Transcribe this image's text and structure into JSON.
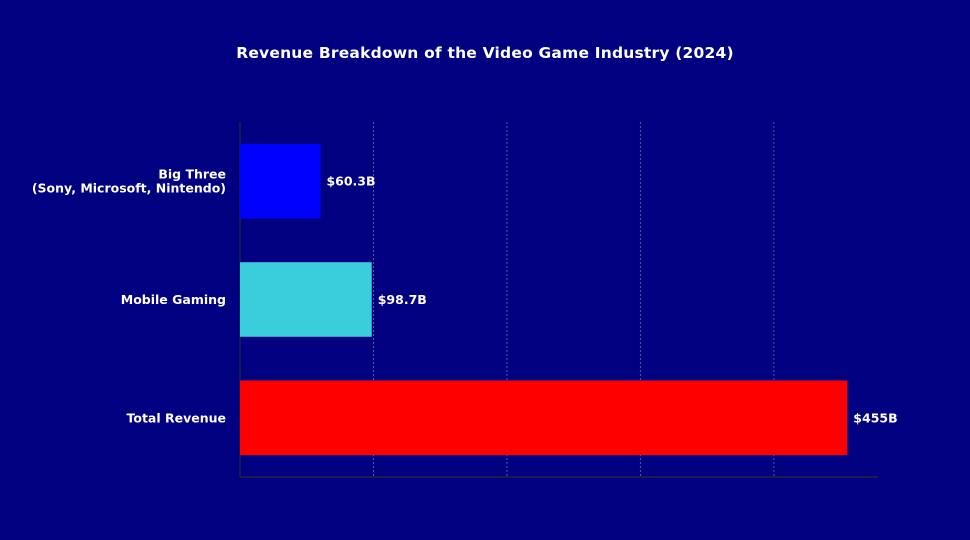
{
  "chart_data": {
    "type": "bar",
    "orientation": "horizontal",
    "title": "Revenue Breakdown of the Video Game Industry (2024)",
    "xlabel": "",
    "ylabel": "",
    "categories": [
      [
        "Big Three",
        "(Sony, Microsoft, Nintendo)"
      ],
      [
        "Mobile Gaming"
      ],
      [
        "Total Revenue"
      ]
    ],
    "values": [
      60.3,
      98.7,
      455
    ],
    "value_labels": [
      "$60.3B",
      "$98.7B",
      "$455B"
    ],
    "colors": [
      "#0000ff",
      "#3acedd",
      "#ff0000"
    ],
    "background_color": "#000080",
    "xlim": [
      0,
      478
    ],
    "grid": "vertical dashed",
    "legend": "none"
  }
}
